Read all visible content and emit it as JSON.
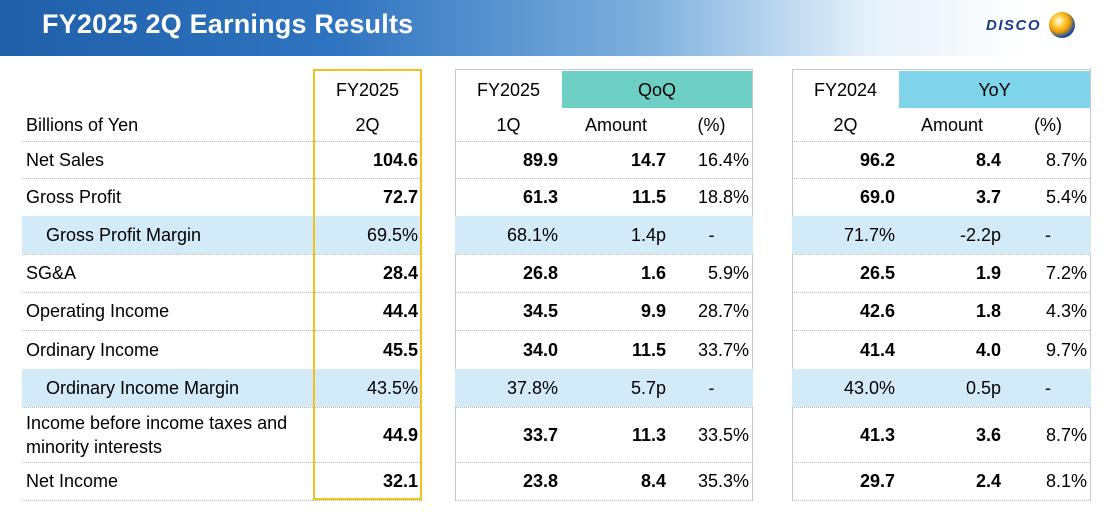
{
  "slide": {
    "title": "FY2025 2Q Earnings Results",
    "logo_text": "DISCO",
    "logo_icon": "disco-globe-icon"
  },
  "table": {
    "unit_label": "Billions of Yen",
    "headers": {
      "fy2025_2q": [
        "FY2025",
        "2Q"
      ],
      "fy2025_1q": [
        "FY2025",
        "1Q"
      ],
      "qoq": "QoQ",
      "fy2024_2q": [
        "FY2024",
        "2Q"
      ],
      "yoy": "YoY",
      "amount": "Amount",
      "pct": "(%)"
    },
    "rows": [
      {
        "label": "Net Sales",
        "values": [
          "104.6",
          "89.9",
          "14.7",
          "16.4%",
          "96.2",
          "8.4",
          "8.7%"
        ],
        "highlight": false
      },
      {
        "label": "Gross Profit",
        "values": [
          "72.7",
          "61.3",
          "11.5",
          "18.8%",
          "69.0",
          "3.7",
          "5.4%"
        ],
        "highlight": false
      },
      {
        "label": "Gross Profit Margin",
        "values": [
          "69.5%",
          "68.1%",
          "1.4p",
          "-",
          "71.7%",
          "-2.2p",
          "-"
        ],
        "highlight": true
      },
      {
        "label": "SG&A",
        "values": [
          "28.4",
          "26.8",
          "1.6",
          "5.9%",
          "26.5",
          "1.9",
          "7.2%"
        ],
        "highlight": false
      },
      {
        "label": "Operating Income",
        "values": [
          "44.4",
          "34.5",
          "9.9",
          "28.7%",
          "42.6",
          "1.8",
          "4.3%"
        ],
        "highlight": false
      },
      {
        "label": "Ordinary Income",
        "values": [
          "45.5",
          "34.0",
          "11.5",
          "33.7%",
          "41.4",
          "4.0",
          "9.7%"
        ],
        "highlight": false
      },
      {
        "label": "Ordinary Income Margin",
        "values": [
          "43.5%",
          "37.8%",
          "5.7p",
          "-",
          "43.0%",
          "0.5p",
          "-"
        ],
        "highlight": true
      },
      {
        "label": "Income before income taxes and minority interests",
        "values": [
          "44.9",
          "33.7",
          "11.3",
          "33.5%",
          "41.3",
          "3.6",
          "8.7%"
        ],
        "highlight": false
      },
      {
        "label": "Net Income",
        "values": [
          "32.1",
          "23.8",
          "8.4",
          "35.3%",
          "29.7",
          "2.4",
          "8.1%"
        ],
        "highlight": false
      }
    ]
  }
}
